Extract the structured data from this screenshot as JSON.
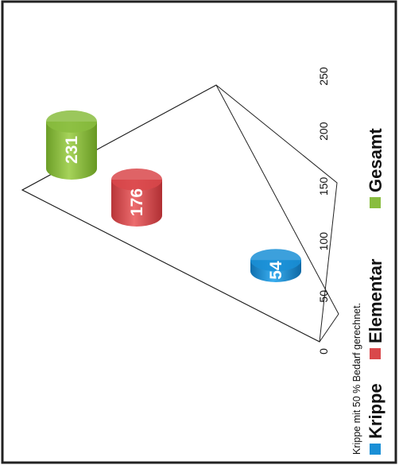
{
  "chart_data": {
    "type": "bar",
    "orientation": "horizontal-3d-cylinder",
    "rotation": "page rotated 90 degrees counter-clockwise",
    "categories": [
      "Krippe",
      "Elementar",
      "Gesamt"
    ],
    "values": [
      54,
      176,
      231
    ],
    "data_labels": [
      "54",
      "176",
      "231"
    ],
    "colors": [
      "#1a8fd6",
      "#d9484b",
      "#89bd3f"
    ],
    "ylim": [
      0,
      250
    ],
    "ticks": [
      "0",
      "50",
      "100",
      "150",
      "200",
      "250"
    ],
    "grid": false,
    "legend": {
      "placement": "bottom",
      "entries": [
        "Krippe",
        "Elementar",
        "Gesamt"
      ]
    },
    "annotation": "Krippe mit 50 % Bedarf gerechnet.",
    "title": "",
    "xlabel": "",
    "ylabel": ""
  }
}
